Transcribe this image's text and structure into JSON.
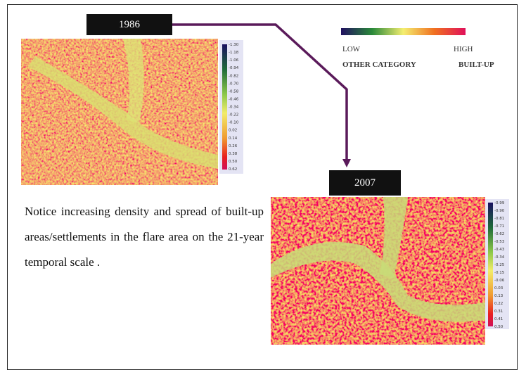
{
  "label_1986": "1986",
  "label_2007": "2007",
  "legend": {
    "low": "LOW",
    "high": "HIGH",
    "other": "OTHER CATEGORY",
    "built": "BUILT-UP"
  },
  "caption": "Notice increasing density and spread of built-up areas/settlements in the  flare area on the 21-year temporal scale .",
  "scale_1986": [
    "-1.30",
    "-1.18",
    "-1.06",
    "-0.94",
    "-0.82",
    "-0.70",
    "-0.58",
    "-0.46",
    "-0.34",
    "-0.22",
    "-0.10",
    "0.02",
    "0.14",
    "0.26",
    "0.38",
    "0.50",
    "0.62"
  ],
  "scale_2007": [
    "-0.99",
    "-0.90",
    "-0.81",
    "-0.71",
    "-0.62",
    "-0.53",
    "-0.43",
    "-0.34",
    "-0.25",
    "-0.15",
    "-0.06",
    "0.03",
    "0.13",
    "0.22",
    "0.31",
    "0.41",
    "0.50"
  ]
}
